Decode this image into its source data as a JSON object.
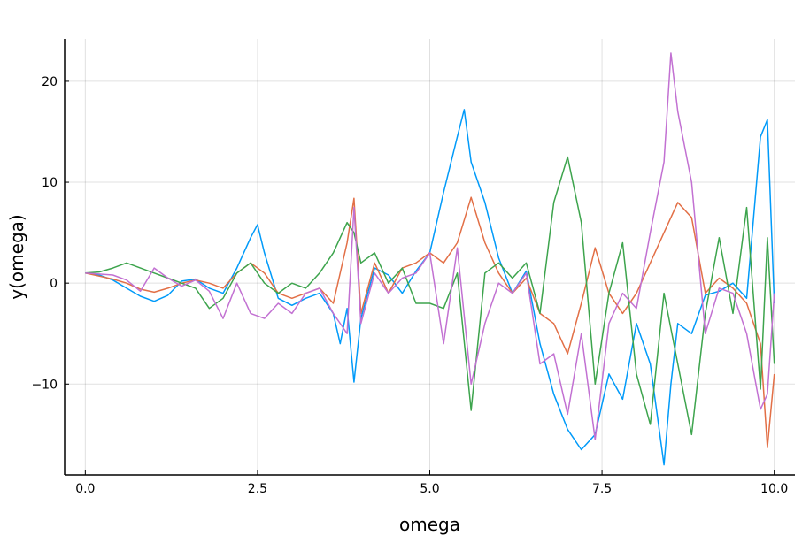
{
  "chart_data": {
    "type": "line",
    "title": "",
    "xlabel": "omega",
    "ylabel": "y(omega)",
    "xlim": [
      -0.3,
      10.3
    ],
    "ylim": [
      -19.0,
      24.2
    ],
    "grid": true,
    "legend": "none",
    "x_ticks": [
      {
        "value": 0.0,
        "label": "0.0"
      },
      {
        "value": 2.5,
        "label": "2.5"
      },
      {
        "value": 5.0,
        "label": "5.0"
      },
      {
        "value": 7.5,
        "label": "7.5"
      },
      {
        "value": 10.0,
        "label": "10.0"
      }
    ],
    "y_ticks": [
      {
        "value": -10,
        "label": "−10"
      },
      {
        "value": 0,
        "label": "0"
      },
      {
        "value": 10,
        "label": "10"
      },
      {
        "value": 20,
        "label": "20"
      }
    ],
    "series": [
      {
        "color": "#009af9",
        "x": [
          0.0,
          0.2,
          0.4,
          0.6,
          0.8,
          1.0,
          1.2,
          1.4,
          1.6,
          1.8,
          2.0,
          2.2,
          2.4,
          2.5,
          2.6,
          2.8,
          3.0,
          3.2,
          3.4,
          3.6,
          3.7,
          3.8,
          3.9,
          4.0,
          4.2,
          4.4,
          4.6,
          4.8,
          5.0,
          5.2,
          5.4,
          5.5,
          5.6,
          5.8,
          6.0,
          6.2,
          6.4,
          6.6,
          6.8,
          7.0,
          7.2,
          7.4,
          7.5,
          7.6,
          7.8,
          8.0,
          8.2,
          8.4,
          8.5,
          8.6,
          8.8,
          9.0,
          9.2,
          9.4,
          9.6,
          9.8,
          9.9,
          10.0
        ],
        "values": [
          1.0,
          0.8,
          0.3,
          -0.5,
          -1.3,
          -1.8,
          -1.2,
          0.2,
          0.4,
          -0.5,
          -1.0,
          1.5,
          4.5,
          5.8,
          3.0,
          -1.5,
          -2.2,
          -1.5,
          -1.0,
          -3.0,
          -6.0,
          -2.5,
          -9.8,
          -3.5,
          1.5,
          0.8,
          -1.0,
          1.2,
          3.0,
          9.0,
          14.5,
          17.2,
          12.0,
          8.0,
          2.5,
          -1.0,
          1.2,
          -6.0,
          -11.0,
          -14.5,
          -16.5,
          -15.0,
          -12.0,
          -9.0,
          -11.5,
          -4.0,
          -8.0,
          -18.0,
          -10.0,
          -4.0,
          -5.0,
          -1.2,
          -0.8,
          0.0,
          -1.5,
          14.5,
          16.2,
          -2.0
        ]
      },
      {
        "color": "#e26f46",
        "x": [
          0.0,
          0.2,
          0.4,
          0.6,
          0.8,
          1.0,
          1.2,
          1.4,
          1.6,
          1.8,
          2.0,
          2.2,
          2.4,
          2.6,
          2.8,
          3.0,
          3.2,
          3.4,
          3.6,
          3.8,
          3.9,
          4.0,
          4.2,
          4.4,
          4.6,
          4.8,
          5.0,
          5.2,
          5.4,
          5.6,
          5.8,
          6.0,
          6.2,
          6.4,
          6.6,
          6.8,
          7.0,
          7.2,
          7.4,
          7.6,
          7.8,
          8.0,
          8.2,
          8.4,
          8.6,
          8.8,
          9.0,
          9.2,
          9.4,
          9.6,
          9.8,
          9.9,
          10.0
        ],
        "values": [
          1.0,
          0.7,
          0.4,
          0.0,
          -0.6,
          -0.9,
          -0.5,
          0.0,
          0.3,
          0.0,
          -0.5,
          1.0,
          2.0,
          1.0,
          -1.0,
          -1.5,
          -1.0,
          -0.5,
          -2.0,
          4.0,
          8.4,
          -3.0,
          2.0,
          -1.0,
          1.5,
          2.0,
          3.0,
          2.0,
          4.0,
          8.5,
          4.0,
          1.0,
          -1.0,
          0.5,
          -3.0,
          -4.0,
          -7.0,
          -2.0,
          3.5,
          -1.0,
          -3.0,
          -1.0,
          2.0,
          5.0,
          8.0,
          6.5,
          -1.0,
          0.5,
          -0.5,
          -2.0,
          -6.0,
          -16.3,
          -9.0
        ]
      },
      {
        "color": "#3da44d",
        "x": [
          0.0,
          0.2,
          0.4,
          0.6,
          0.8,
          1.0,
          1.2,
          1.4,
          1.6,
          1.8,
          2.0,
          2.2,
          2.4,
          2.6,
          2.8,
          3.0,
          3.2,
          3.4,
          3.6,
          3.8,
          3.9,
          4.0,
          4.2,
          4.4,
          4.6,
          4.8,
          5.0,
          5.2,
          5.4,
          5.6,
          5.8,
          6.0,
          6.2,
          6.4,
          6.6,
          6.8,
          7.0,
          7.2,
          7.4,
          7.6,
          7.8,
          8.0,
          8.2,
          8.4,
          8.6,
          8.8,
          9.0,
          9.2,
          9.4,
          9.6,
          9.8,
          9.9,
          10.0
        ],
        "values": [
          1.0,
          1.1,
          1.5,
          2.0,
          1.5,
          1.0,
          0.5,
          0.0,
          -0.5,
          -2.5,
          -1.5,
          1.0,
          2.0,
          0.0,
          -1.0,
          0.0,
          -0.5,
          1.0,
          3.0,
          6.0,
          5.0,
          2.0,
          3.0,
          0.0,
          1.5,
          -2.0,
          -2.0,
          -2.5,
          1.0,
          -12.6,
          1.0,
          2.0,
          0.5,
          2.0,
          -3.0,
          8.0,
          12.5,
          6.0,
          -10.0,
          -1.0,
          4.0,
          -9.0,
          -14.0,
          -1.0,
          -8.0,
          -15.0,
          -3.0,
          4.5,
          -3.0,
          7.5,
          -10.5,
          4.5,
          -8.0
        ]
      },
      {
        "color": "#c271d2",
        "x": [
          0.0,
          0.2,
          0.4,
          0.6,
          0.8,
          1.0,
          1.2,
          1.4,
          1.6,
          1.8,
          2.0,
          2.2,
          2.4,
          2.6,
          2.8,
          3.0,
          3.2,
          3.4,
          3.6,
          3.8,
          3.9,
          4.0,
          4.2,
          4.4,
          4.6,
          4.8,
          5.0,
          5.2,
          5.4,
          5.6,
          5.8,
          6.0,
          6.2,
          6.4,
          6.6,
          6.8,
          7.0,
          7.2,
          7.4,
          7.6,
          7.8,
          8.0,
          8.2,
          8.4,
          8.5,
          8.6,
          8.8,
          9.0,
          9.2,
          9.4,
          9.6,
          9.8,
          9.9,
          10.0
        ],
        "values": [
          1.0,
          0.9,
          0.8,
          0.3,
          -0.8,
          1.5,
          0.5,
          -0.3,
          0.3,
          -0.8,
          -3.5,
          0.0,
          -3.0,
          -3.5,
          -2.0,
          -3.0,
          -1.0,
          -0.5,
          -3.0,
          -5.0,
          7.5,
          -4.0,
          1.0,
          -1.0,
          0.5,
          1.0,
          3.0,
          -6.0,
          3.5,
          -10.0,
          -4.0,
          0.0,
          -1.0,
          1.0,
          -8.0,
          -7.0,
          -13.0,
          -5.0,
          -15.5,
          -4.0,
          -1.0,
          -2.5,
          5.0,
          12.0,
          22.8,
          17.0,
          10.0,
          -5.0,
          -0.5,
          -1.0,
          -5.0,
          -12.5,
          -11.0,
          -1.0
        ]
      }
    ]
  }
}
